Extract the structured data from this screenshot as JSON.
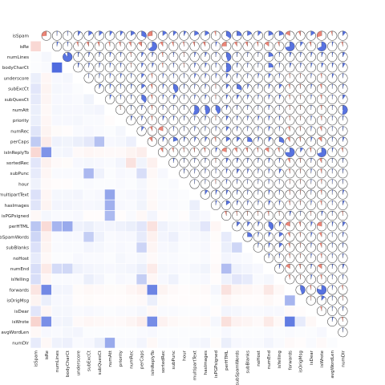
{
  "chart_data": {
    "type": "heatmap",
    "style": "corrgram",
    "lower_panel": "shade",
    "upper_panel": "pie",
    "colors": {
      "positive": "#3b5bdb",
      "negative": "#e8705f",
      "neutral": "#ffffff"
    },
    "variables": [
      "isSpam",
      "isRe",
      "numLines",
      "bodyCharCt",
      "underscore",
      "subExcCt",
      "subQuesCt",
      "numAtt",
      "priority",
      "numRec",
      "perCaps",
      "isInReplyTo",
      "sortedRec",
      "subPunc",
      "hour",
      "multipartText",
      "hasImages",
      "isPGPsigned",
      "perHTML",
      "subSpamWords",
      "subBlanks",
      "noHost",
      "numEnd",
      "isYelling",
      "forwards",
      "isOrigMsg",
      "isDear",
      "isWrote",
      "avgWordLen",
      "numDlr"
    ],
    "correlations": {
      "isRe": {
        "isSpam": -0.27
      },
      "numLines": {
        "isSpam": 0.02,
        "isRe": 0.05
      },
      "bodyCharCt": {
        "isSpam": 0.02,
        "isRe": 0.03,
        "numLines": 0.9
      },
      "underscore": {
        "isSpam": 0.1,
        "isRe": -0.06,
        "numLines": 0.04,
        "bodyCharCt": 0.05
      },
      "subExcCt": {
        "isSpam": 0.15,
        "isRe": -0.08,
        "numLines": 0.05,
        "bodyCharCt": 0.04,
        "underscore": 0.02
      },
      "subQuesCt": {
        "isSpam": 0.13,
        "isRe": -0.07,
        "numLines": 0.04,
        "bodyCharCt": 0.04,
        "underscore": 0.03,
        "subExcCt": 0.07
      },
      "numAtt": {
        "isSpam": 0.1,
        "isRe": -0.05,
        "numLines": 0.05,
        "bodyCharCt": 0.04,
        "underscore": 0.04,
        "subExcCt": 0.05,
        "subQuesCt": 0.06
      },
      "priority": {
        "isSpam": 0.1,
        "isRe": -0.06,
        "numLines": 0.04,
        "bodyCharCt": 0.04,
        "underscore": 0.05,
        "subExcCt": 0.03,
        "subQuesCt": 0.03,
        "numAtt": -0.02
      },
      "numRec": {
        "isSpam": 0.16,
        "isRe": -0.08,
        "numLines": -0.03,
        "bodyCharCt": -0.02,
        "underscore": 0.03,
        "subExcCt": 0.04,
        "subQuesCt": 0.03,
        "numAtt": 0.02,
        "priority": 0.05
      },
      "perCaps": {
        "isSpam": 0.32,
        "isRe": -0.13,
        "numLines": 0.08,
        "bodyCharCt": 0.07,
        "underscore": 0.1,
        "subExcCt": 0.14,
        "subQuesCt": 0.38,
        "numAtt": 0.04,
        "priority": 0.05,
        "numRec": 0.09
      },
      "isInReplyTo": {
        "isSpam": -0.27,
        "isRe": 0.65,
        "numLines": 0.05,
        "bodyCharCt": 0.06,
        "underscore": -0.04,
        "subExcCt": -0.06,
        "subQuesCt": -0.05,
        "numAtt": -0.04,
        "priority": -0.04,
        "numRec": -0.08,
        "perCaps": -0.12
      },
      "sortedRec": {
        "isSpam": 0.15,
        "isRe": -0.1,
        "numLines": -0.04,
        "bodyCharCt": -0.03,
        "underscore": 0.04,
        "subExcCt": 0.05,
        "subQuesCt": 0.04,
        "numAtt": 0.03,
        "priority": 0.06,
        "numRec": -0.2,
        "perCaps": 0.07,
        "isInReplyTo": -0.1
      },
      "subPunc": {
        "isSpam": 0.12,
        "isRe": -0.06,
        "numLines": 0.03,
        "bodyCharCt": 0.03,
        "underscore": 0.03,
        "subExcCt": 0.43,
        "subQuesCt": 0.08,
        "numAtt": 0.02,
        "priority": 0.04,
        "numRec": 0.03,
        "perCaps": 0.2,
        "isInReplyTo": -0.05,
        "sortedRec": 0.04
      },
      "hour": {
        "isSpam": 0.08,
        "isRe": -0.04,
        "numLines": -0.02,
        "bodyCharCt": -0.02,
        "underscore": 0.02,
        "subExcCt": 0.03,
        "subQuesCt": 0.02,
        "numAtt": 0.02,
        "priority": 0.03,
        "numRec": 0.02,
        "perCaps": 0.05,
        "isInReplyTo": -0.03,
        "sortedRec": 0.02,
        "subPunc": 0.03
      },
      "multipartText": {
        "isSpam": 0.18,
        "isRe": -0.06,
        "numLines": 0.05,
        "bodyCharCt": 0.05,
        "underscore": 0.06,
        "subExcCt": 0.03,
        "subQuesCt": 0.04,
        "numAtt": 0.55,
        "priority": 0.03,
        "numRec": 0.04,
        "perCaps": 0.06,
        "isInReplyTo": -0.04,
        "sortedRec": 0.03,
        "subPunc": 0.03,
        "hour": 0.02
      },
      "hasImages": {
        "isSpam": 0.16,
        "isRe": -0.08,
        "numLines": 0.06,
        "bodyCharCt": 0.06,
        "underscore": 0.05,
        "subExcCt": 0.04,
        "subQuesCt": 0.05,
        "numAtt": 0.48,
        "priority": 0.04,
        "numRec": 0.03,
        "perCaps": 0.07,
        "isInReplyTo": -0.05,
        "sortedRec": 0.03,
        "subPunc": 0.03,
        "hour": 0.02,
        "multipartText": 0.1
      },
      "isPGPsigned": {
        "isSpam": -0.05,
        "isRe": 0.05,
        "numLines": 0.03,
        "bodyCharCt": 0.03,
        "underscore": 0.04,
        "subExcCt": -0.02,
        "subQuesCt": -0.02,
        "numAtt": 0.42,
        "priority": -0.02,
        "numRec": 0.03,
        "perCaps": -0.05,
        "isInReplyTo": 0.06,
        "sortedRec": -0.02,
        "subPunc": 0.02,
        "hour": -0.02,
        "multipartText": 0.06,
        "hasImages": 0.04
      },
      "perHTML": {
        "isSpam": 0.35,
        "isRe": -0.25,
        "numLines": 0.45,
        "bodyCharCt": 0.52,
        "underscore": 0.08,
        "subExcCt": 0.1,
        "subQuesCt": 0.06,
        "numAtt": 0.06,
        "priority": 0.08,
        "numRec": 0.1,
        "perCaps": 0.15,
        "isInReplyTo": -0.2,
        "sortedRec": 0.08,
        "subPunc": 0.05,
        "hour": 0.04,
        "multipartText": 0.07,
        "hasImages": 0.15,
        "isPGPsigned": -0.06
      },
      "subSpamWords": {
        "isSpam": 0.25,
        "isRe": -0.1,
        "numLines": 0.03,
        "bodyCharCt": 0.04,
        "underscore": 0.04,
        "subExcCt": 0.3,
        "subQuesCt": 0.08,
        "numAtt": 0.03,
        "priority": 0.04,
        "numRec": 0.04,
        "perCaps": 0.12,
        "isInReplyTo": -0.1,
        "sortedRec": 0.06,
        "subPunc": 0.09,
        "hour": 0.03,
        "multipartText": 0.04,
        "hasImages": 0.05,
        "isPGPsigned": -0.03,
        "perHTML": 0.12
      },
      "subBlanks": {
        "isSpam": 0.18,
        "isRe": -0.08,
        "numLines": 0.03,
        "bodyCharCt": 0.03,
        "underscore": 0.03,
        "subExcCt": 0.06,
        "subQuesCt": 0.05,
        "numAtt": 0.03,
        "priority": 0.04,
        "numRec": 0.03,
        "perCaps": 0.26,
        "isInReplyTo": -0.07,
        "sortedRec": 0.04,
        "subPunc": 0.05,
        "hour": 0.02,
        "multipartText": 0.03,
        "hasImages": 0.04,
        "isPGPsigned": -0.02,
        "perHTML": 0.1,
        "subSpamWords": 0.25
      },
      "noHost": {
        "isSpam": 0.12,
        "isRe": -0.05,
        "numLines": 0.02,
        "bodyCharCt": 0.02,
        "underscore": 0.04,
        "subExcCt": 0.03,
        "subQuesCt": 0.03,
        "numAtt": 0.02,
        "priority": 0.05,
        "numRec": 0.03,
        "perCaps": 0.05,
        "isInReplyTo": -0.04,
        "sortedRec": 0.03,
        "subPunc": 0.03,
        "hour": 0.02,
        "multipartText": 0.02,
        "hasImages": 0.03,
        "isPGPsigned": -0.02,
        "perHTML": 0.06,
        "subSpamWords": 0.04,
        "subBlanks": 0.03
      },
      "numEnd": {
        "isSpam": 0.2,
        "isRe": -0.15,
        "numLines": 0.22,
        "bodyCharCt": 0.24,
        "underscore": 0.08,
        "subExcCt": 0.06,
        "subQuesCt": 0.05,
        "numAtt": 0.04,
        "priority": 0.05,
        "numRec": 0.06,
        "perCaps": 0.1,
        "isInReplyTo": -0.14,
        "sortedRec": 0.05,
        "subPunc": 0.04,
        "hour": 0.03,
        "multipartText": 0.05,
        "hasImages": 0.07,
        "isPGPsigned": -0.04,
        "perHTML": 0.4,
        "subSpamWords": 0.08,
        "subBlanks": 0.06,
        "noHost": 0.04
      },
      "isYelling": {
        "isSpam": 0.2,
        "isRe": -0.06,
        "numLines": 0.03,
        "bodyCharCt": 0.03,
        "underscore": 0.03,
        "subExcCt": 0.1,
        "subQuesCt": 0.06,
        "numAtt": 0.02,
        "priority": 0.04,
        "numRec": 0.03,
        "perCaps": 0.3,
        "isInReplyTo": -0.06,
        "sortedRec": 0.04,
        "subPunc": 0.08,
        "hour": 0.02,
        "multipartText": 0.03,
        "hasImages": 0.04,
        "isPGPsigned": -0.02,
        "perHTML": 0.08,
        "subSpamWords": 0.15,
        "subBlanks": 0.12,
        "noHost": 0.03,
        "numEnd": 0.05
      },
      "forwards": {
        "isSpam": -0.18,
        "isRe": 0.72,
        "numLines": 0.06,
        "bodyCharCt": 0.06,
        "underscore": -0.03,
        "subExcCt": -0.05,
        "subQuesCt": -0.04,
        "numAtt": -0.03,
        "priority": -0.03,
        "numRec": -0.06,
        "perCaps": -0.1,
        "isInReplyTo": 0.75,
        "sortedRec": -0.08,
        "subPunc": -0.04,
        "hour": -0.02,
        "multipartText": -0.03,
        "hasImages": -0.04,
        "isPGPsigned": 0.05,
        "perHTML": -0.2,
        "subSpamWords": -0.08,
        "subBlanks": -0.06,
        "noHost": -0.04,
        "numEnd": -0.16,
        "isYelling": -0.05
      },
      "isOrigMsg": {
        "isSpam": -0.08,
        "isRe": 0.1,
        "numLines": 0.04,
        "bodyCharCt": 0.04,
        "underscore": -0.02,
        "subExcCt": -0.03,
        "subQuesCt": -0.02,
        "numAtt": -0.02,
        "priority": -0.02,
        "numRec": -0.03,
        "perCaps": -0.04,
        "isInReplyTo": 0.1,
        "sortedRec": -0.03,
        "subPunc": -0.02,
        "hour": -0.02,
        "multipartText": -0.02,
        "hasImages": -0.02,
        "isPGPsigned": 0.02,
        "perHTML": -0.06,
        "subSpamWords": -0.03,
        "subBlanks": -0.02,
        "noHost": -0.02,
        "numEnd": -0.05,
        "isYelling": -0.02,
        "forwards": 0.45
      },
      "isDear": {
        "isSpam": 0.15,
        "isRe": -0.06,
        "numLines": 0.05,
        "bodyCharCt": 0.05,
        "underscore": 0.03,
        "subExcCt": 0.04,
        "subQuesCt": 0.03,
        "numAtt": 0.02,
        "priority": 0.03,
        "numRec": 0.03,
        "perCaps": 0.05,
        "isInReplyTo": -0.05,
        "sortedRec": 0.03,
        "subPunc": 0.03,
        "hour": 0.02,
        "multipartText": 0.02,
        "hasImages": 0.03,
        "isPGPsigned": -0.02,
        "perHTML": 0.06,
        "subSpamWords": 0.05,
        "subBlanks": 0.03,
        "noHost": 0.03,
        "numEnd": 0.04,
        "isYelling": 0.04,
        "forwards": -0.04,
        "isOrigMsg": -0.02
      },
      "isWrote": {
        "isSpam": -0.3,
        "isRe": 0.68,
        "numLines": 0.06,
        "bodyCharCt": 0.07,
        "underscore": -0.04,
        "subExcCt": -0.06,
        "subQuesCt": -0.05,
        "numAtt": -0.04,
        "priority": -0.04,
        "numRec": -0.07,
        "perCaps": -0.12,
        "isInReplyTo": 0.7,
        "sortedRec": -0.09,
        "subPunc": -0.05,
        "hour": -0.03,
        "multipartText": -0.04,
        "hasImages": -0.05,
        "isPGPsigned": 0.05,
        "perHTML": -0.22,
        "subSpamWords": -0.09,
        "subBlanks": -0.07,
        "noHost": -0.04,
        "numEnd": -0.15,
        "isYelling": -0.05,
        "forwards": 0.8,
        "isOrigMsg": 0.12,
        "isDear": -0.05
      },
      "avgWordLen": {
        "isSpam": -0.05,
        "isRe": 0.04,
        "numLines": 0.03,
        "bodyCharCt": 0.05,
        "underscore": 0.06,
        "subExcCt": 0.02,
        "subQuesCt": 0.02,
        "numAtt": 0.02,
        "priority": 0.02,
        "numRec": 0.02,
        "perCaps": 0.03,
        "isInReplyTo": 0.04,
        "sortedRec": 0.02,
        "subPunc": 0.02,
        "hour": 0.02,
        "multipartText": 0.02,
        "hasImages": 0.02,
        "isPGPsigned": 0.02,
        "perHTML": 0.04,
        "subSpamWords": 0.02,
        "subBlanks": 0.02,
        "noHost": 0.02,
        "numEnd": 0.03,
        "isYelling": 0.02,
        "forwards": 0.03,
        "isOrigMsg": 0.02,
        "isDear": 0.02,
        "isWrote": 0.04
      },
      "numDlr": {
        "isSpam": 0.12,
        "isRe": -0.05,
        "numLines": 0.08,
        "bodyCharCt": 0.09,
        "underscore": 0.03,
        "subExcCt": 0.04,
        "subQuesCt": 0.1,
        "numAtt": 0.52,
        "priority": 0.03,
        "numRec": 0.03,
        "perCaps": 0.06,
        "isInReplyTo": -0.05,
        "sortedRec": 0.03,
        "subPunc": 0.03,
        "hour": 0.02,
        "multipartText": 0.05,
        "hasImages": 0.06,
        "isPGPsigned": -0.03,
        "perHTML": 0.1,
        "subSpamWords": 0.04,
        "subBlanks": 0.03,
        "noHost": 0.03,
        "numEnd": 0.06,
        "isYelling": 0.03,
        "forwards": -0.04,
        "isOrigMsg": -0.02,
        "isDear": 0.03,
        "isWrote": -0.04,
        "avgWordLen": 0.02
      }
    }
  }
}
